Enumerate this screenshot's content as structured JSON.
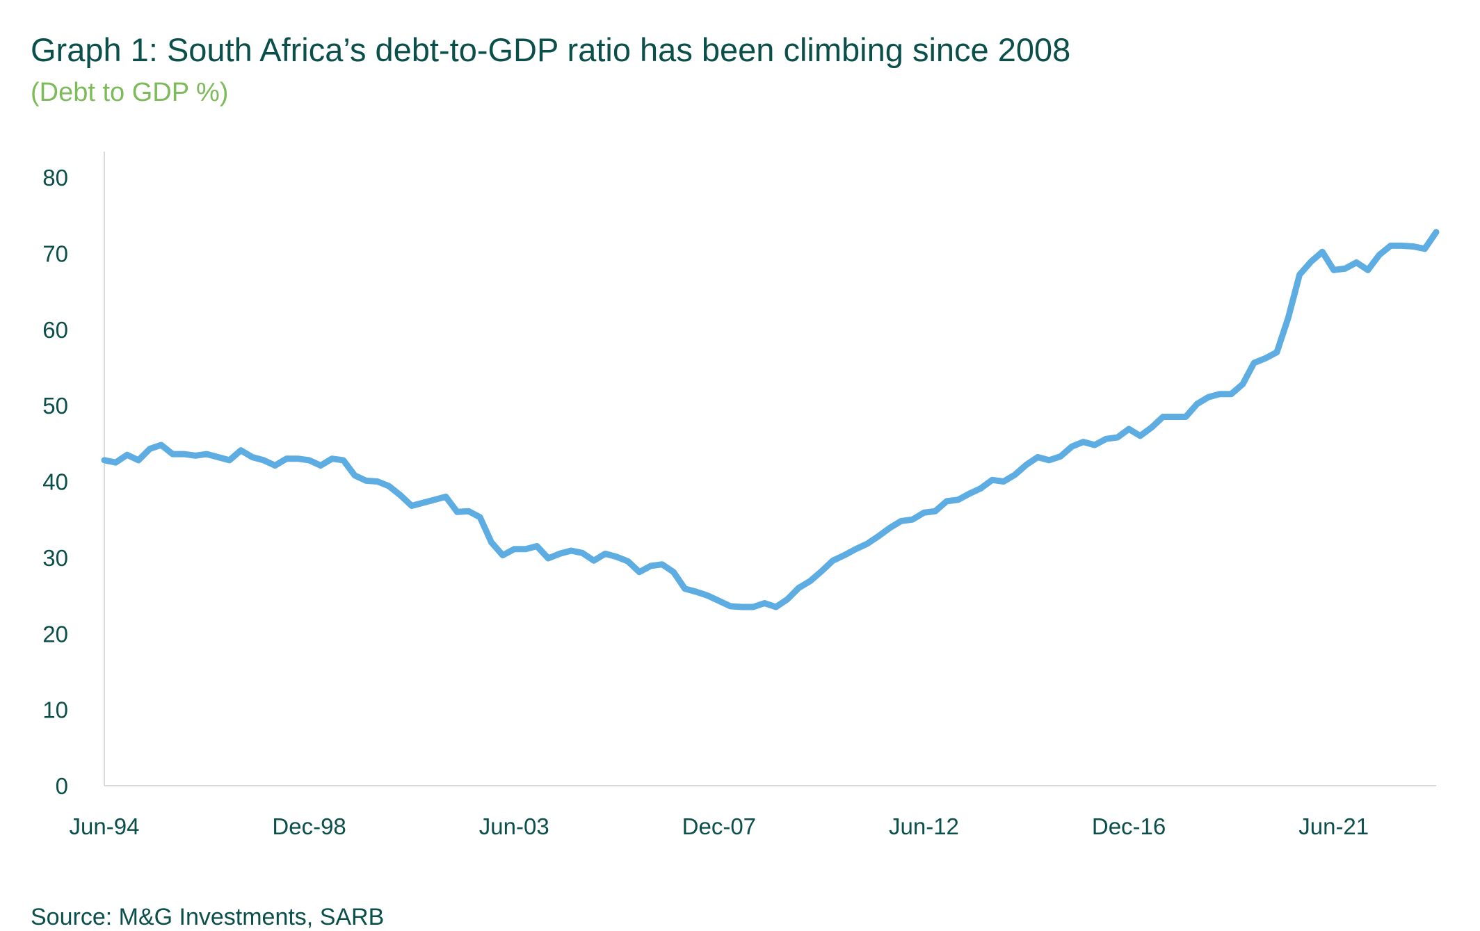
{
  "title": "Graph 1: South Africa’s debt-to-GDP ratio has been climbing since 2008",
  "subtitle": "(Debt to GDP %)",
  "source": "Source: M&G Investments, SARB",
  "colors": {
    "title": "#0b4f4a",
    "subtitle": "#7dbb5a",
    "line": "#5dade2",
    "axis": "#d9d9d9"
  },
  "chart_data": {
    "type": "line",
    "xlabel": "",
    "ylabel": "",
    "ylim": [
      0,
      80
    ],
    "yticks": [
      0,
      10,
      20,
      30,
      40,
      50,
      60,
      70,
      80
    ],
    "xtick_labels": [
      "Jun-94",
      "Dec-98",
      "Jun-03",
      "Dec-07",
      "Jun-12",
      "Dec-16",
      "Jun-21"
    ],
    "x_period": "quarterly, Jun-94 onward",
    "grid": false,
    "legend": "none",
    "series": [
      {
        "values": [
          42.8,
          42.5,
          43.5,
          42.8,
          44.3,
          44.8,
          43.6,
          43.6,
          43.4,
          43.6,
          43.2,
          42.8,
          44.1,
          43.2,
          42.8,
          42.1,
          43.0,
          43.0,
          42.8,
          42.1,
          43.0,
          42.8,
          40.8,
          40.1,
          40.0,
          39.4,
          38.2,
          36.8,
          37.2,
          37.6,
          38.0,
          36.0,
          36.1,
          35.3,
          32.0,
          30.3,
          31.1,
          31.1,
          31.5,
          29.9,
          30.5,
          30.9,
          30.6,
          29.6,
          30.5,
          30.1,
          29.5,
          28.1,
          28.9,
          29.1,
          28.1,
          25.9,
          25.5,
          25.0,
          24.3,
          23.6,
          23.5,
          23.5,
          24.0,
          23.5,
          24.5,
          26.0,
          26.9,
          28.2,
          29.6,
          30.3,
          31.1,
          31.8,
          32.8,
          33.9,
          34.8,
          35.0,
          35.9,
          36.1,
          37.4,
          37.6,
          38.4,
          39.1,
          40.2,
          40.0,
          40.9,
          42.2,
          43.2,
          42.8,
          43.3,
          44.6,
          45.2,
          44.8,
          45.6,
          45.8,
          46.9,
          46.0,
          47.1,
          48.5,
          48.5,
          48.5,
          50.2,
          51.1,
          51.5,
          51.5,
          52.8,
          55.6,
          56.2,
          57.0,
          61.5,
          67.2,
          68.9,
          70.2,
          67.8,
          68.0,
          68.8,
          67.8,
          69.8,
          71.0,
          71.0,
          70.9,
          70.6,
          72.8
        ]
      }
    ]
  }
}
